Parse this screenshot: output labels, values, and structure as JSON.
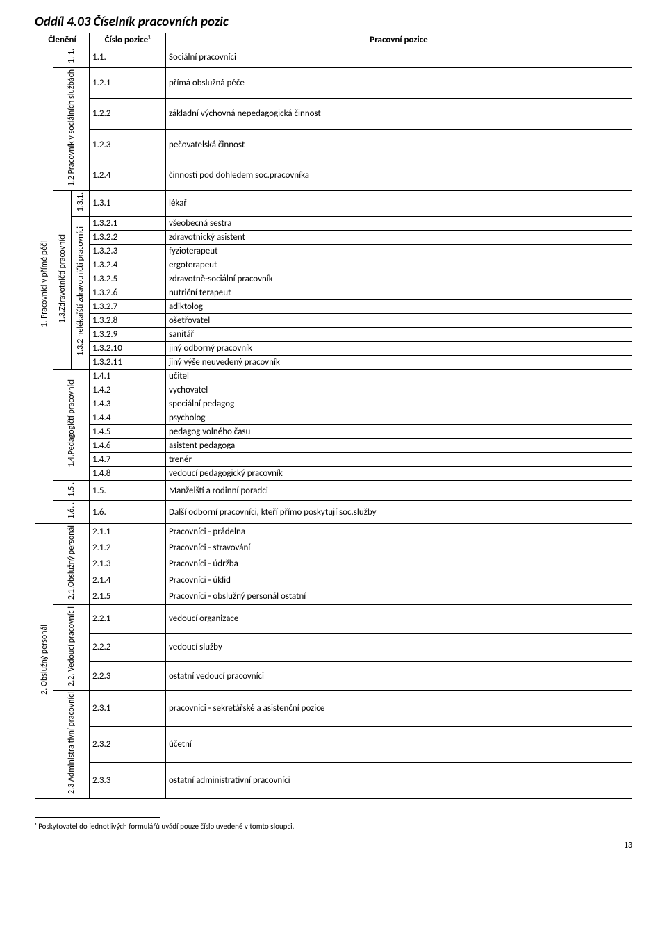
{
  "section_title": "Oddíl 4.03  Číselník pracovních pozic",
  "headers": {
    "col_grouping": "Členění",
    "col_code": "Číslo pozice¹",
    "col_desc": "Pracovní pozice"
  },
  "vert": {
    "g1": "1. Pracovníci v přímé péči",
    "g2": "2. Obslužný personál",
    "g1a": "1. 1.",
    "g1b": "1.2 Pracovník v sociálních službách",
    "g1c": "1.3.Zdravotničtí pracovníci",
    "g1d": "1.4.Pedagogičtí pracovníci",
    "g1e": "1.5 .",
    "g1f": "1.6. .",
    "g1c1": "1.3.1.",
    "g1c2": "1.3.2 nelékařští zdravotničtí pracovníci",
    "g2a": "2.1.Obslužný personál",
    "g2b": "2.2. Vedoucí pracovníc i",
    "g2c": "2.3 Administra tivní pracovníci"
  },
  "rows": [
    {
      "code": "1.1.",
      "desc": "Sociální pracovníci"
    },
    {
      "code": "1.2.1",
      "desc": "přímá obslužná péče"
    },
    {
      "code": "1.2.2",
      "desc": "základní výchovná nepedagogická činnost"
    },
    {
      "code": "1.2.3",
      "desc": "pečovatelská činnost"
    },
    {
      "code": "1.2.4",
      "desc": "činnosti pod dohledem soc.pracovníka"
    },
    {
      "code": "1.3.1",
      "desc": "lékař"
    },
    {
      "code": "1.3.2.1",
      "desc": "všeobecná sestra"
    },
    {
      "code": "1.3.2.2",
      "desc": "zdravotnický asistent"
    },
    {
      "code": "1.3.2.3",
      "desc": "fyzioterapeut"
    },
    {
      "code": "1.3.2.4",
      "desc": "ergoterapeut"
    },
    {
      "code": "1.3.2.5",
      "desc": "zdravotně-sociální pracovník"
    },
    {
      "code": "1.3.2.6",
      "desc": "nutriční terapeut"
    },
    {
      "code": "1.3.2.7",
      "desc": "adiktolog"
    },
    {
      "code": "1.3.2.8",
      "desc": "ošetřovatel"
    },
    {
      "code": "1.3.2.9",
      "desc": "sanitář"
    },
    {
      "code": "1.3.2.10",
      "desc": "jiný odborný pracovník"
    },
    {
      "code": "1.3.2.11",
      "desc": "jiný výše neuvedený pracovník"
    },
    {
      "code": "1.4.1",
      "desc": "učitel"
    },
    {
      "code": "1.4.2",
      "desc": "vychovatel"
    },
    {
      "code": "1.4.3",
      "desc": "speciální pedagog"
    },
    {
      "code": "1.4.4",
      "desc": "psycholog"
    },
    {
      "code": "1.4.5",
      "desc": "pedagog volného času"
    },
    {
      "code": "1.4.6",
      "desc": "asistent pedagoga"
    },
    {
      "code": "1.4.7",
      "desc": "trenér"
    },
    {
      "code": "1.4.8",
      "desc": "vedoucí pedagogický pracovník"
    },
    {
      "code": "1.5.",
      "desc": "Manželští a rodinní poradci"
    },
    {
      "code": "1.6.",
      "desc": "Další odborní pracovníci, kteří přímo poskytují soc.služby"
    },
    {
      "code": "2.1.1",
      "desc": "Pracovníci - prádelna"
    },
    {
      "code": "2.1.2",
      "desc": "Pracovníci - stravování"
    },
    {
      "code": "2.1.3",
      "desc": "Pracovníci - údržba"
    },
    {
      "code": "2.1.4",
      "desc": "Pracovníci - úklid"
    },
    {
      "code": "2.1.5",
      "desc": "Pracovníci - obslužný personál ostatní"
    },
    {
      "code": "2.2.1",
      "desc": "vedoucí organizace"
    },
    {
      "code": "2.2.2",
      "desc": "vedoucí služby"
    },
    {
      "code": "2.2.3",
      "desc": "ostatní vedoucí pracovníci"
    },
    {
      "code": "2.3.1",
      "desc": "pracovnici - sekretářské a asistenční pozice"
    },
    {
      "code": "2.3.2",
      "desc": "účetní"
    },
    {
      "code": "2.3.3",
      "desc": "ostatní administrativní pracovníci"
    }
  ],
  "footnote": "¹ Poskytovatel do jednotlivých formulářů uvádí pouze číslo uvedené v tomto sloupci.",
  "page_number": "13"
}
